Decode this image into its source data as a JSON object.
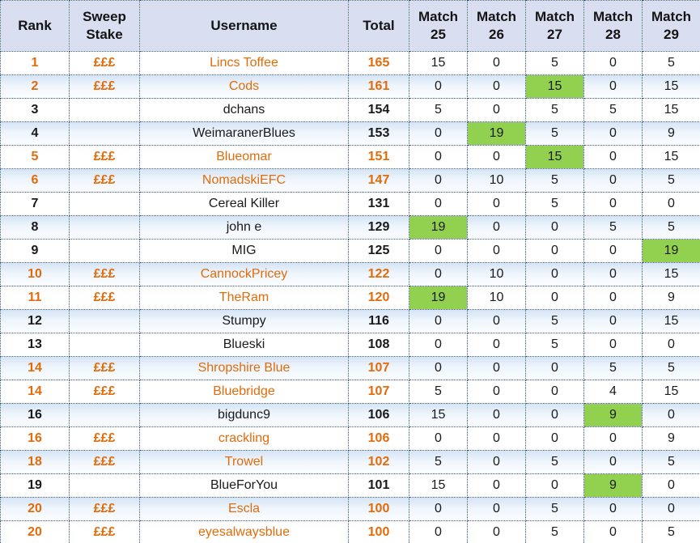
{
  "table": {
    "columns": [
      {
        "key": "rank",
        "label": "Rank"
      },
      {
        "key": "sweep",
        "label": "Sweep Stake"
      },
      {
        "key": "username",
        "label": "Username"
      },
      {
        "key": "total",
        "label": "Total"
      },
      {
        "key": "m25",
        "label": "Match 25"
      },
      {
        "key": "m26",
        "label": "Match 26"
      },
      {
        "key": "m27",
        "label": "Match 27"
      },
      {
        "key": "m28",
        "label": "Match 28"
      },
      {
        "key": "m29",
        "label": "Match 29"
      }
    ],
    "rows": [
      {
        "rank": "1",
        "sweep": "£££",
        "username": "Lincs Toffee",
        "total": "165",
        "matches": [
          "15",
          "0",
          "5",
          "0",
          "5"
        ],
        "green": [],
        "orange": true
      },
      {
        "rank": "2",
        "sweep": "£££",
        "username": "Cods",
        "total": "161",
        "matches": [
          "0",
          "0",
          "15",
          "0",
          "15"
        ],
        "green": [
          2
        ],
        "orange": true
      },
      {
        "rank": "3",
        "sweep": "",
        "username": "dchans",
        "total": "154",
        "matches": [
          "5",
          "0",
          "5",
          "5",
          "15"
        ],
        "green": [],
        "orange": false
      },
      {
        "rank": "4",
        "sweep": "",
        "username": "WeimaranerBlues",
        "total": "153",
        "matches": [
          "0",
          "19",
          "5",
          "0",
          "9"
        ],
        "green": [
          1
        ],
        "orange": false
      },
      {
        "rank": "5",
        "sweep": "£££",
        "username": "Blueomar",
        "total": "151",
        "matches": [
          "0",
          "0",
          "15",
          "0",
          "15"
        ],
        "green": [
          2
        ],
        "orange": true
      },
      {
        "rank": "6",
        "sweep": "£££",
        "username": "NomadskiEFC",
        "total": "147",
        "matches": [
          "0",
          "10",
          "5",
          "0",
          "5"
        ],
        "green": [],
        "orange": true
      },
      {
        "rank": "7",
        "sweep": "",
        "username": "Cereal Killer",
        "total": "131",
        "matches": [
          "0",
          "0",
          "5",
          "0",
          "0"
        ],
        "green": [],
        "orange": false
      },
      {
        "rank": "8",
        "sweep": "",
        "username": "john e",
        "total": "129",
        "matches": [
          "19",
          "0",
          "0",
          "5",
          "5"
        ],
        "green": [
          0
        ],
        "orange": false
      },
      {
        "rank": "9",
        "sweep": "",
        "username": "MIG",
        "total": "125",
        "matches": [
          "0",
          "0",
          "0",
          "0",
          "19"
        ],
        "green": [
          4
        ],
        "orange": false
      },
      {
        "rank": "10",
        "sweep": "£££",
        "username": "CannockPricey",
        "total": "122",
        "matches": [
          "0",
          "10",
          "0",
          "0",
          "15"
        ],
        "green": [],
        "orange": true
      },
      {
        "rank": "11",
        "sweep": "£££",
        "username": "TheRam",
        "total": "120",
        "matches": [
          "19",
          "10",
          "0",
          "0",
          "9"
        ],
        "green": [
          0
        ],
        "orange": true
      },
      {
        "rank": "12",
        "sweep": "",
        "username": "Stumpy",
        "total": "116",
        "matches": [
          "0",
          "0",
          "5",
          "0",
          "15"
        ],
        "green": [],
        "orange": false
      },
      {
        "rank": "13",
        "sweep": "",
        "username": "Blueski",
        "total": "108",
        "matches": [
          "0",
          "0",
          "5",
          "0",
          "0"
        ],
        "green": [],
        "orange": false
      },
      {
        "rank": "14",
        "sweep": "£££",
        "username": "Shropshire Blue",
        "total": "107",
        "matches": [
          "0",
          "0",
          "0",
          "5",
          "5"
        ],
        "green": [],
        "orange": true
      },
      {
        "rank": "14",
        "sweep": "£££",
        "username": "Bluebridge",
        "total": "107",
        "matches": [
          "5",
          "0",
          "0",
          "4",
          "15"
        ],
        "green": [],
        "orange": true
      },
      {
        "rank": "16",
        "sweep": "",
        "username": "bigdunc9",
        "total": "106",
        "matches": [
          "15",
          "0",
          "0",
          "9",
          "0"
        ],
        "green": [
          3
        ],
        "orange": false
      },
      {
        "rank": "16",
        "sweep": "£££",
        "username": "crackling",
        "total": "106",
        "matches": [
          "0",
          "0",
          "0",
          "0",
          "9"
        ],
        "green": [],
        "orange": true
      },
      {
        "rank": "18",
        "sweep": "£££",
        "username": "Trowel",
        "total": "102",
        "matches": [
          "5",
          "0",
          "5",
          "0",
          "5"
        ],
        "green": [],
        "orange": true
      },
      {
        "rank": "19",
        "sweep": "",
        "username": "BlueForYou",
        "total": "101",
        "matches": [
          "15",
          "0",
          "0",
          "9",
          "0"
        ],
        "green": [
          3
        ],
        "orange": false
      },
      {
        "rank": "20",
        "sweep": "£££",
        "username": "Escla",
        "total": "100",
        "matches": [
          "0",
          "0",
          "5",
          "0",
          "0"
        ],
        "green": [],
        "orange": true
      },
      {
        "rank": "20",
        "sweep": "£££",
        "username": "eyesalwaysblue",
        "total": "100",
        "matches": [
          "0",
          "0",
          "5",
          "0",
          "5"
        ],
        "green": [],
        "orange": true
      }
    ]
  },
  "colors": {
    "header_bg": "#dadef1",
    "alt_row_top": "#d6e4f5",
    "border_blue": "#35599f",
    "prize_orange": "#e26b0a",
    "highlight_green": "#92d050",
    "text_black": "#1a1a1a"
  }
}
